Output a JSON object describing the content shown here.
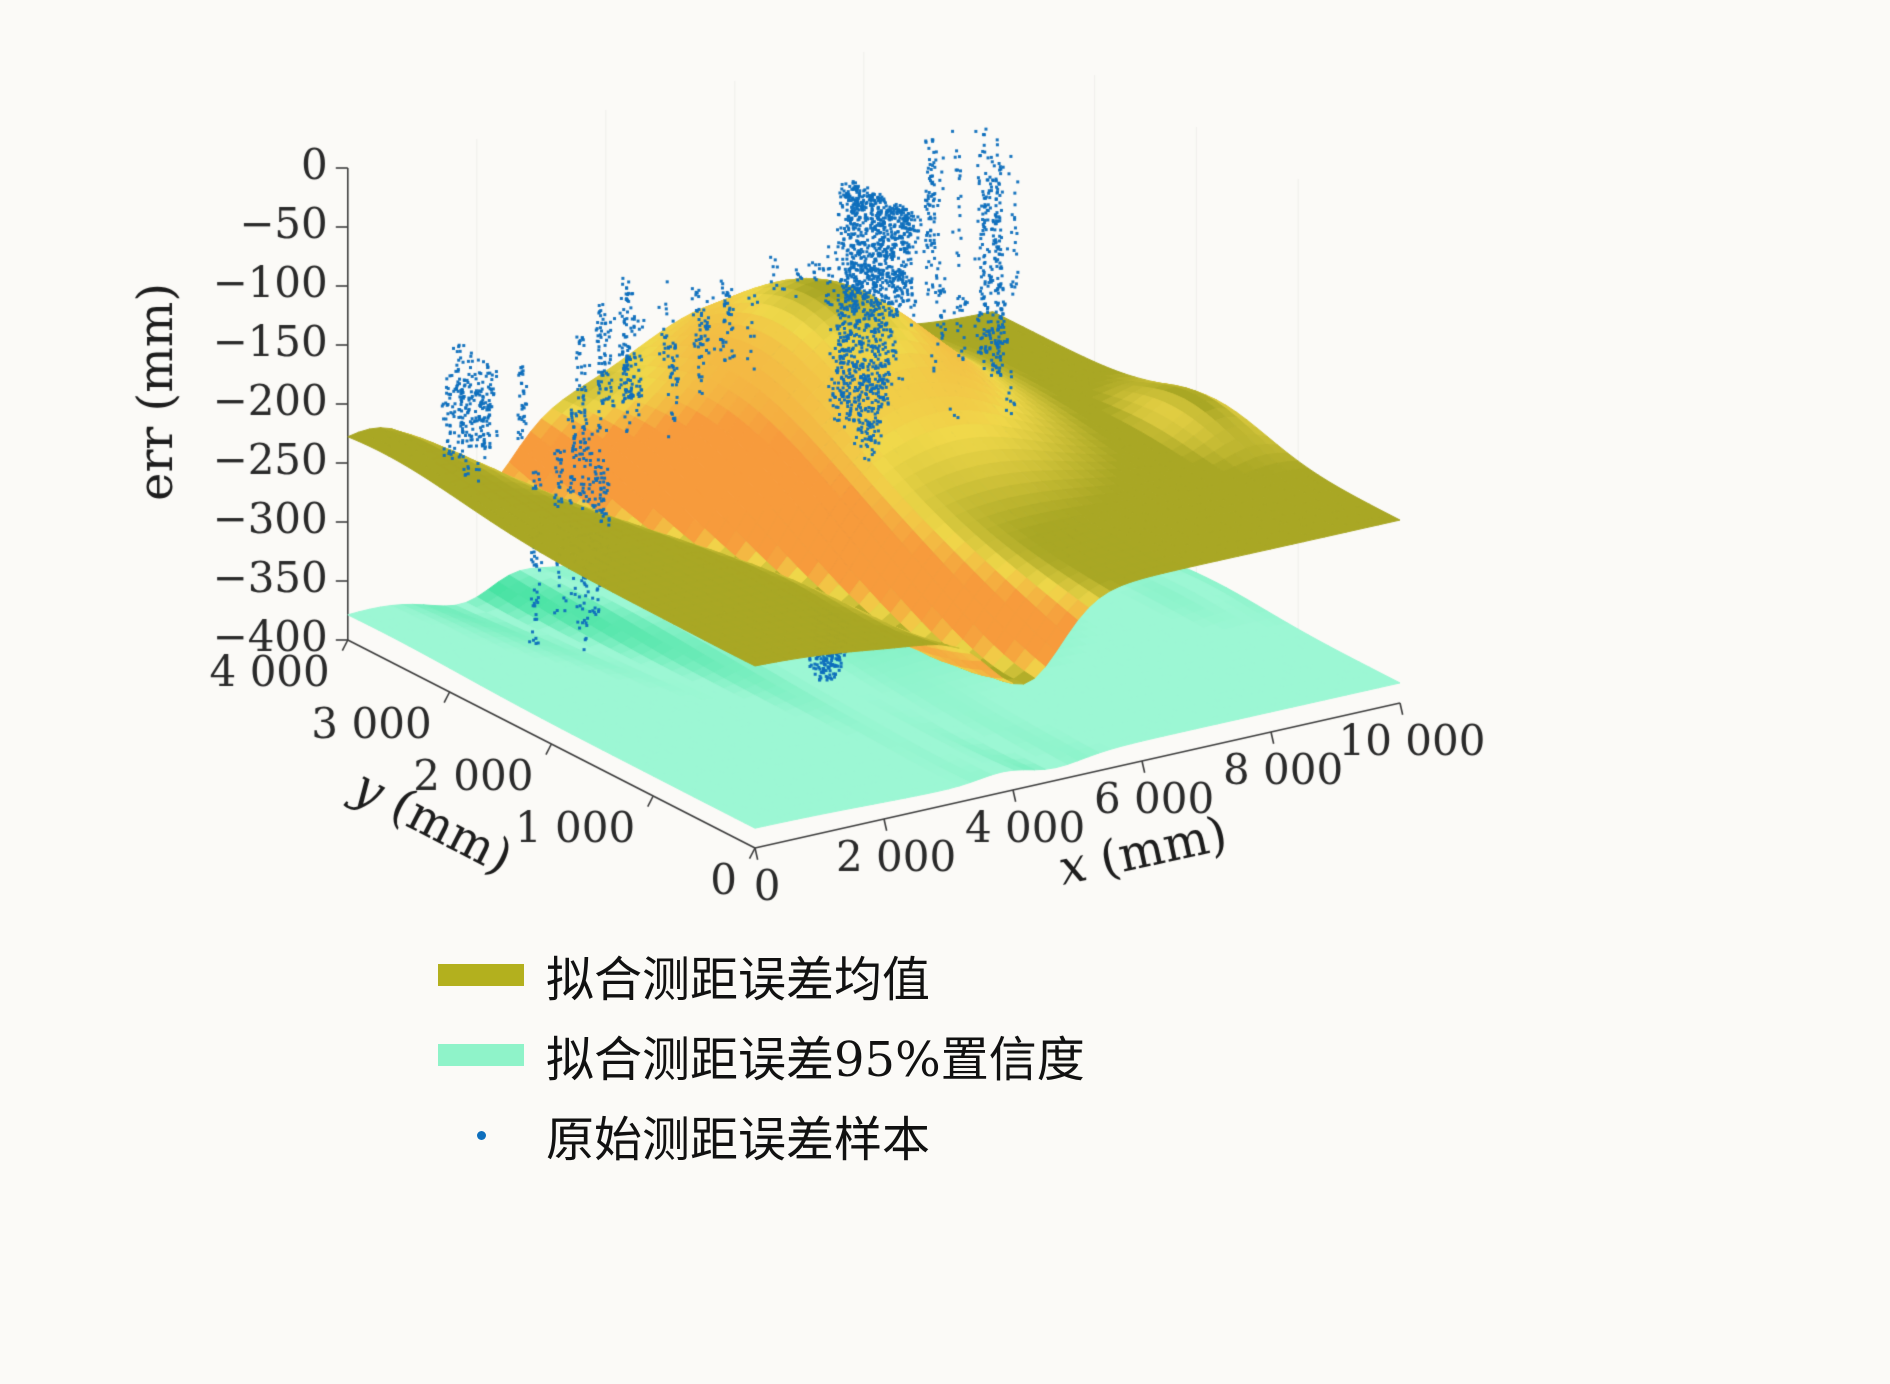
{
  "page": {
    "background": "#fbfaf7"
  },
  "chart_data": {
    "type": "surface3d_scatter",
    "title": "",
    "axes": {
      "x": {
        "label": "x (mm)",
        "lim": [
          0,
          10000
        ],
        "ticks": [
          0,
          2000,
          4000,
          6000,
          8000,
          10000
        ],
        "tick_labels": [
          "0",
          "2 000",
          "4 000",
          "6 000",
          "8 000",
          "10 000"
        ]
      },
      "y": {
        "label": "y (mm)",
        "lim": [
          0,
          4000
        ],
        "ticks": [
          0,
          1000,
          2000,
          3000,
          4000
        ],
        "tick_labels": [
          "0",
          "1 000",
          "2 000",
          "3 000",
          "4 000"
        ]
      },
      "z": {
        "label": "err (mm)",
        "lim": [
          -400,
          0
        ],
        "ticks": [
          0,
          -50,
          -100,
          -150,
          -200,
          -250,
          -300,
          -350,
          -400
        ],
        "tick_labels": [
          "0",
          "−50",
          "−100",
          "−150",
          "−200",
          "−250",
          "−300",
          "−350",
          "−400"
        ]
      }
    },
    "surfaces": {
      "mean": {
        "name": "拟合测距误差均值",
        "base": -245,
        "components": [
          {
            "kind": "peak",
            "amp": 118,
            "u0": 0.58,
            "v0": 0.74,
            "du": 0.035,
            "dv": 0.1
          },
          {
            "kind": "peak",
            "amp": 22,
            "u0": 0.04,
            "v0": 0.92,
            "du": 0.01,
            "dv": 0.08
          },
          {
            "kind": "ridge",
            "amp": -58,
            "a": 0.42,
            "b": -0.22,
            "du": 0.006
          },
          {
            "kind": "peak",
            "amp": 30,
            "u0": 0.965,
            "v0": 0.45,
            "du": 0.004,
            "dv": 0.03
          },
          {
            "kind": "peak",
            "amp": -16,
            "u0": 0.3,
            "v0": 0.05,
            "du": 0.03,
            "dv": 0.04
          }
        ],
        "colors": {
          "flat": "#a9a724",
          "mid": "#f0d84a",
          "steep": "#f79b3c"
        }
      },
      "confidence": {
        "name": "拟合测距误差95%置信度",
        "base": -383,
        "follow": 0.25,
        "fold": {
          "amp": 16,
          "a": 0.4,
          "b": -0.15,
          "du": 0.004
        },
        "colors": {
          "flat": "#9cf7d4",
          "steep": "#46e2a2"
        }
      }
    },
    "scatter": {
      "name": "原始测距误差样本",
      "color": "#0e6fbd",
      "clusters": [
        {
          "kind": "columns",
          "x": [
            300,
            1300
          ],
          "y": [
            2900,
            3500
          ],
          "z": [
            -235,
            -120
          ],
          "cols": 10,
          "pts": 26,
          "seed": 11
        },
        {
          "kind": "columns",
          "x": [
            1300,
            2100
          ],
          "y": [
            2700,
            3300
          ],
          "z": [
            -392,
            -170
          ],
          "cols": 7,
          "pts": 48,
          "seed": 22
        },
        {
          "kind": "columns",
          "x": [
            2100,
            3600
          ],
          "y": [
            2700,
            3600
          ],
          "z": [
            -235,
            -110
          ],
          "cols": 13,
          "pts": 30,
          "seed": 33
        },
        {
          "kind": "wall",
          "x": [
            4300,
            5200
          ],
          "y": [
            1700,
            2400
          ],
          "z": [
            -400,
            -5
          ],
          "pts": 2200,
          "seed": 44
        },
        {
          "kind": "columns",
          "x": [
            3700,
            4600
          ],
          "y": [
            2800,
            3600
          ],
          "z": [
            -220,
            -100
          ],
          "cols": 8,
          "pts": 26,
          "seed": 55
        },
        {
          "kind": "columns",
          "x": [
            5200,
            6800
          ],
          "y": [
            2700,
            3600
          ],
          "z": [
            -235,
            -110
          ],
          "cols": 12,
          "pts": 30,
          "seed": 66
        },
        {
          "kind": "columns",
          "x": [
            6900,
            8400
          ],
          "y": [
            2400,
            3300
          ],
          "z": [
            -265,
            -130
          ],
          "cols": 10,
          "pts": 26,
          "seed": 77
        },
        {
          "kind": "columns",
          "x": [
            8500,
            9700
          ],
          "y": [
            3100,
            3900
          ],
          "z": [
            -215,
            -60
          ],
          "cols": 9,
          "pts": 34,
          "seed": 88
        },
        {
          "kind": "columns",
          "x": [
            6200,
            7200
          ],
          "y": [
            1300,
            1900
          ],
          "z": [
            -325,
            -235
          ],
          "cols": 5,
          "pts": 16,
          "seed": 99
        },
        {
          "kind": "columns",
          "x": [
            5600,
            7000
          ],
          "y": [
            1800,
            2400
          ],
          "z": [
            -245,
            -150
          ],
          "cols": 6,
          "pts": 18,
          "seed": 12
        }
      ]
    },
    "legend": {
      "position": "bottom",
      "entries": [
        {
          "label": "拟合测距误差均值",
          "swatch": "#b3b01e",
          "type": "patch"
        },
        {
          "label": "拟合测距误差95%置信度",
          "swatch": "#8ff3c9",
          "type": "patch"
        },
        {
          "label": "原始测距误差样本",
          "swatch": "#0e6fbd",
          "type": "dot"
        }
      ]
    }
  }
}
